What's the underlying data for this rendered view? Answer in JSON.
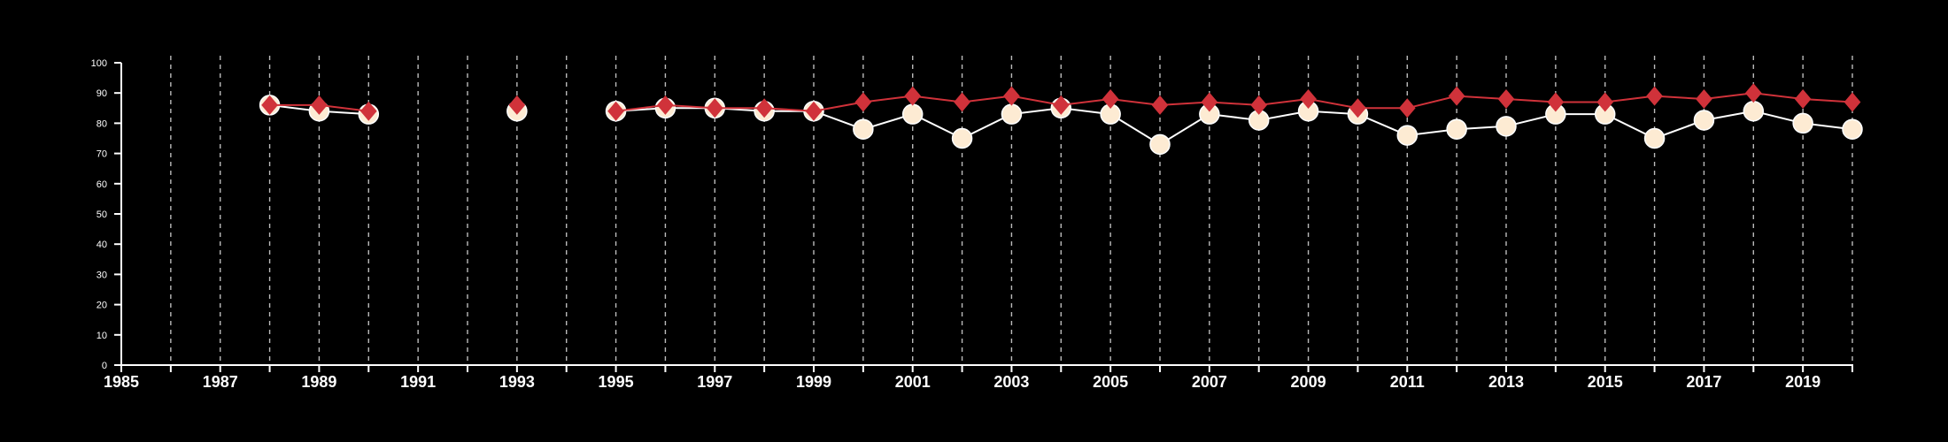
{
  "chart_data": {
    "type": "line",
    "title": "",
    "xlabel": "",
    "ylabel": "",
    "xlim": [
      1985,
      2020
    ],
    "ylim": [
      0,
      100
    ],
    "x_ticks_labeled": [
      1985,
      1987,
      1989,
      1991,
      1993,
      1995,
      1997,
      1999,
      2001,
      2003,
      2005,
      2007,
      2009,
      2011,
      2013,
      2015,
      2017,
      2019
    ],
    "y_ticks": [
      0,
      10,
      20,
      30,
      40,
      50,
      60,
      70,
      80,
      90,
      100
    ],
    "vertical_grid": "dashed, every year",
    "background": "#000000",
    "axis_color": "#ffffff",
    "series": [
      {
        "marker": "circle",
        "color": "#fdebd3",
        "line_color": "#ffffff",
        "points": [
          [
            1988,
            86
          ],
          [
            1989,
            84
          ],
          [
            1990,
            83
          ],
          [
            1993,
            84
          ],
          [
            1995,
            84
          ],
          [
            1996,
            85
          ],
          [
            1997,
            85
          ],
          [
            1998,
            84
          ],
          [
            1999,
            84
          ],
          [
            2000,
            78
          ],
          [
            2001,
            83
          ],
          [
            2002,
            75
          ],
          [
            2003,
            83
          ],
          [
            2004,
            85
          ],
          [
            2005,
            83
          ],
          [
            2006,
            73
          ],
          [
            2007,
            83
          ],
          [
            2008,
            81
          ],
          [
            2009,
            84
          ],
          [
            2010,
            83
          ],
          [
            2011,
            76
          ],
          [
            2012,
            78
          ],
          [
            2013,
            79
          ],
          [
            2014,
            83
          ],
          [
            2015,
            83
          ],
          [
            2016,
            75
          ],
          [
            2017,
            81
          ],
          [
            2018,
            84
          ],
          [
            2019,
            80
          ],
          [
            2020,
            78
          ]
        ]
      },
      {
        "marker": "diamond",
        "color": "#d0323a",
        "line_color": "#d0323a",
        "points": [
          [
            1988,
            86
          ],
          [
            1989,
            86
          ],
          [
            1990,
            84
          ],
          [
            1993,
            86
          ],
          [
            1995,
            84
          ],
          [
            1996,
            86
          ],
          [
            1997,
            85
          ],
          [
            1998,
            85
          ],
          [
            1999,
            84
          ],
          [
            2000,
            87
          ],
          [
            2001,
            89
          ],
          [
            2002,
            87
          ],
          [
            2003,
            89
          ],
          [
            2004,
            86
          ],
          [
            2005,
            88
          ],
          [
            2006,
            86
          ],
          [
            2007,
            87
          ],
          [
            2008,
            86
          ],
          [
            2009,
            88
          ],
          [
            2010,
            85
          ],
          [
            2011,
            85
          ],
          [
            2012,
            89
          ],
          [
            2013,
            88
          ],
          [
            2014,
            87
          ],
          [
            2015,
            87
          ],
          [
            2016,
            89
          ],
          [
            2017,
            88
          ],
          [
            2018,
            90
          ],
          [
            2019,
            88
          ],
          [
            2020,
            87
          ]
        ]
      }
    ]
  }
}
